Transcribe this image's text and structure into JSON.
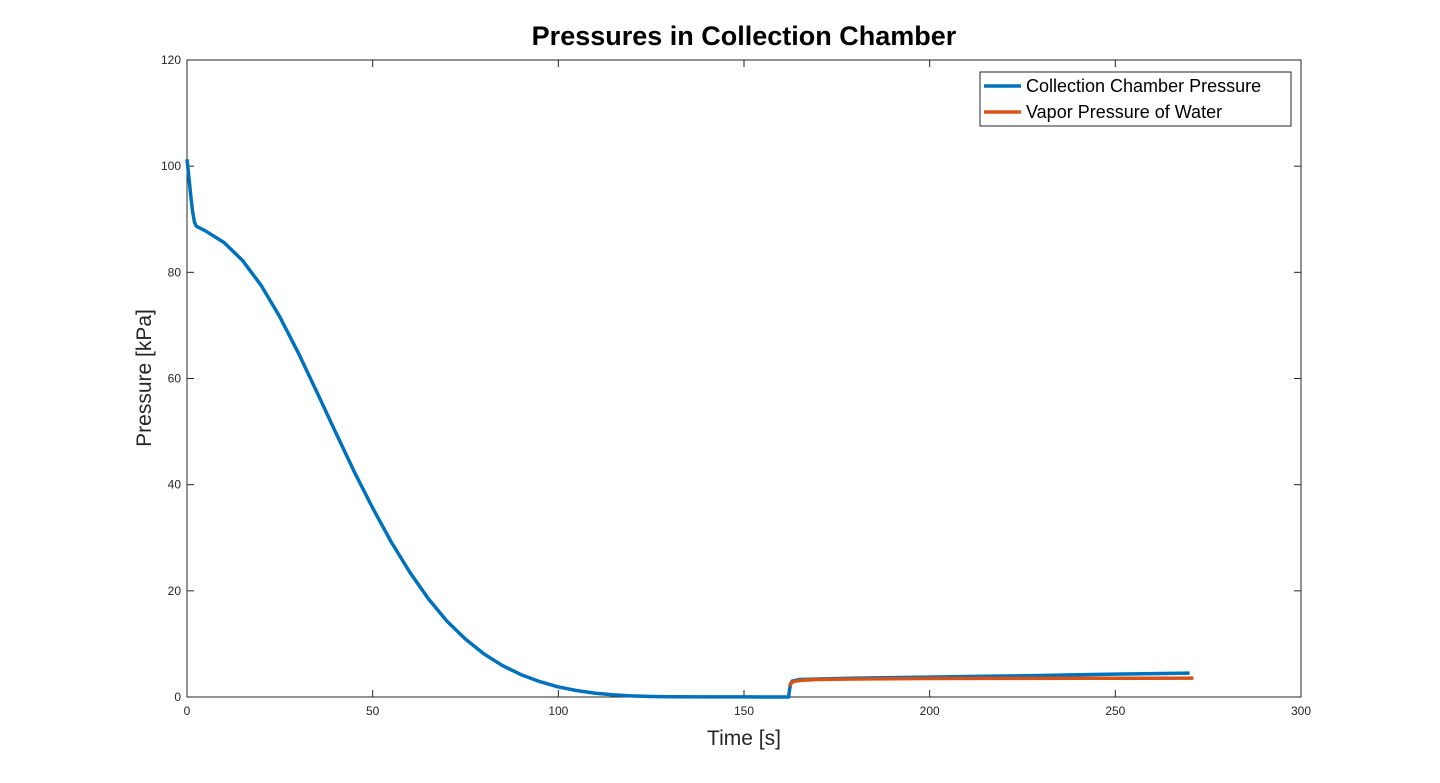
{
  "chart_data": {
    "type": "line",
    "title": "Pressures in Collection Chamber",
    "xlabel": "Time [s]",
    "ylabel": "Pressure [kPa]",
    "xlim": [
      0,
      300
    ],
    "ylim": [
      0,
      120
    ],
    "xticks": [
      0,
      50,
      100,
      150,
      200,
      250,
      300
    ],
    "yticks": [
      0,
      20,
      40,
      60,
      80,
      100,
      120
    ],
    "grid": false,
    "legend_position": "top-right",
    "series": [
      {
        "name": "Collection Chamber Pressure",
        "color": "#0072BD",
        "x": [
          0,
          0.5,
          1,
          1.5,
          2,
          2.5,
          3,
          5,
          10,
          15,
          20,
          25,
          30,
          35,
          40,
          45,
          50,
          55,
          60,
          65,
          70,
          75,
          80,
          85,
          90,
          95,
          100,
          105,
          110,
          115,
          120,
          125,
          130,
          140,
          150,
          155,
          162,
          162.3,
          162.6,
          163,
          165,
          170,
          180,
          190,
          200,
          210,
          220,
          230,
          240,
          250,
          260,
          270
        ],
        "y": [
          101.3,
          98,
          94.5,
          91.5,
          89.5,
          88.7,
          88.5,
          87.8,
          85.6,
          82.2,
          77.5,
          71.6,
          64.8,
          57.4,
          49.9,
          42.5,
          35.6,
          29.2,
          23.5,
          18.5,
          14.3,
          10.9,
          8.1,
          5.9,
          4.2,
          2.9,
          1.9,
          1.2,
          0.7,
          0.4,
          0.2,
          0.1,
          0.05,
          0.02,
          0.02,
          0.01,
          0.01,
          1.5,
          2.6,
          3.0,
          3.3,
          3.4,
          3.55,
          3.65,
          3.75,
          3.85,
          3.95,
          4.05,
          4.2,
          4.3,
          4.4,
          4.5
        ]
      },
      {
        "name": "Vapor Pressure of Water",
        "color": "#D95319",
        "x": [
          162.3,
          162.5,
          163,
          164,
          165,
          167,
          170,
          175,
          180,
          190,
          200,
          220,
          240,
          260,
          271
        ],
        "y": [
          2.0,
          2.4,
          2.8,
          3.0,
          3.1,
          3.2,
          3.3,
          3.35,
          3.4,
          3.45,
          3.48,
          3.5,
          3.52,
          3.53,
          3.55
        ]
      }
    ]
  }
}
